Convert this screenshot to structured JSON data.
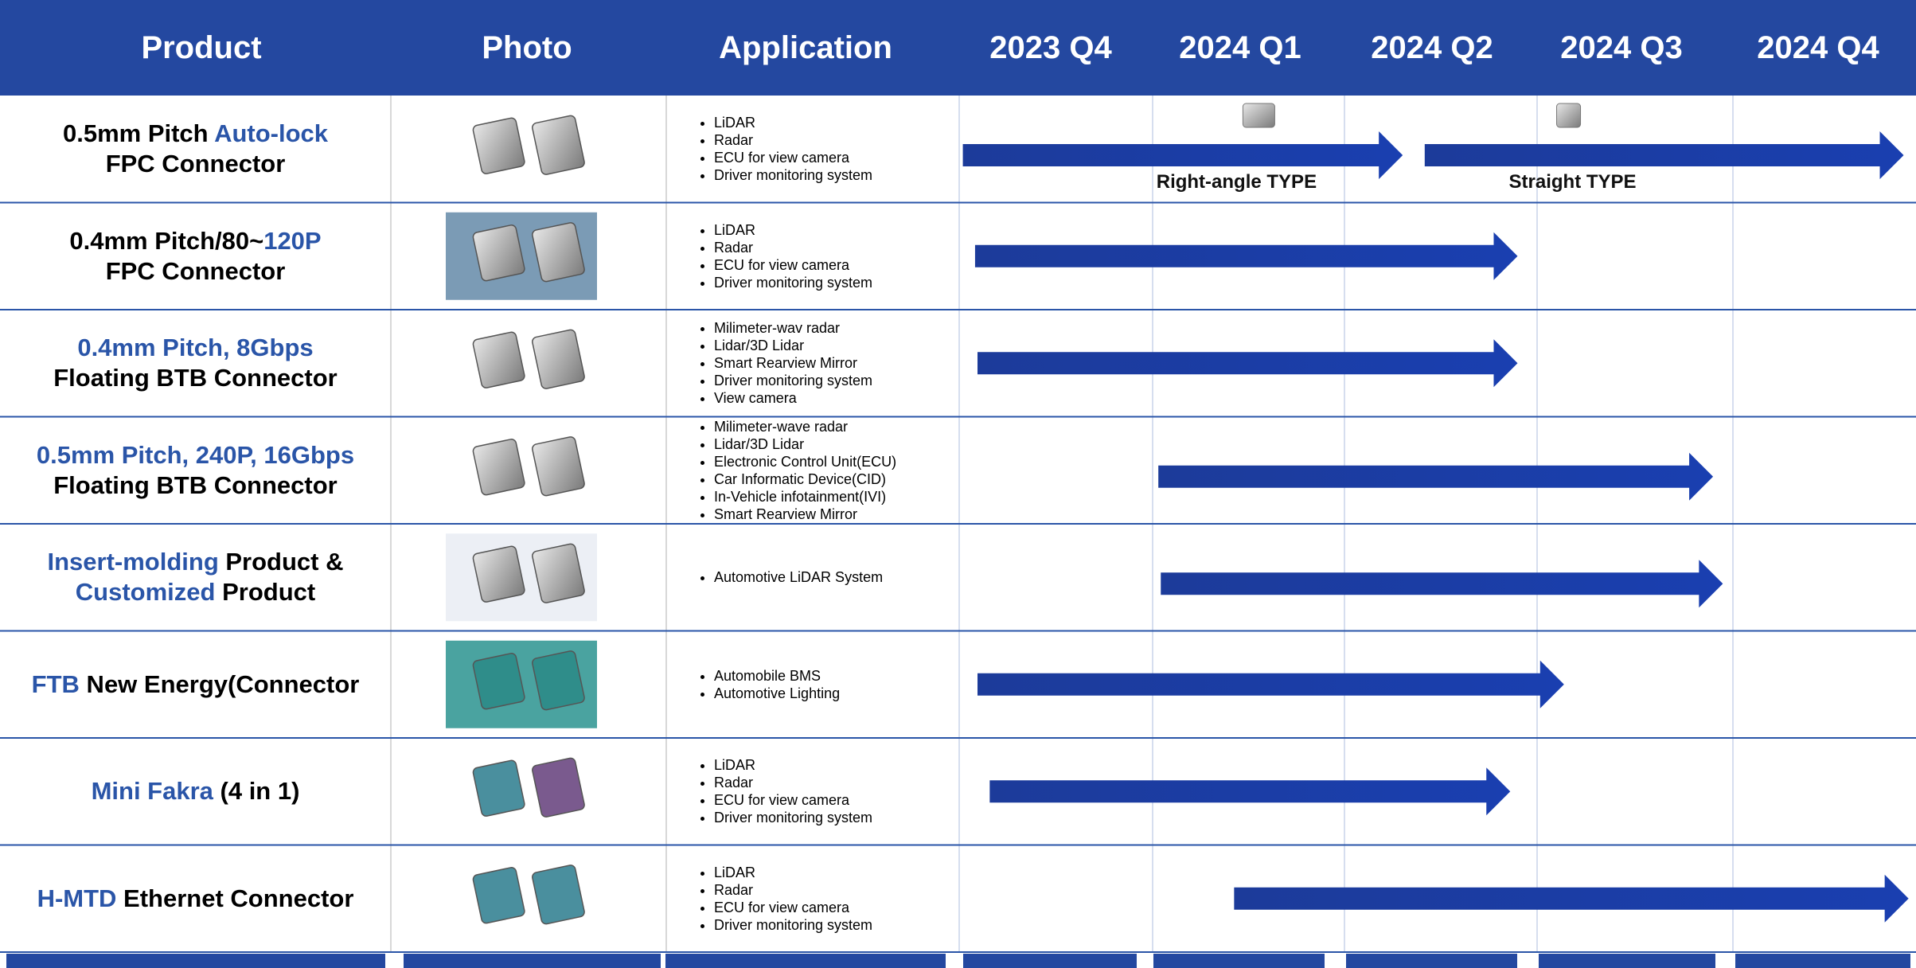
{
  "header": {
    "columns": [
      "Product",
      "Photo",
      "Application",
      "2023 Q4",
      "2024 Q1",
      "2024 Q2",
      "2024 Q3",
      "2024 Q4"
    ]
  },
  "rows": [
    {
      "product": [
        [
          {
            "text": "0.5mm Pitch "
          },
          {
            "text": "Auto-lock",
            "color": "#2a55a8"
          }
        ],
        [
          {
            "text": "FPC Connector"
          }
        ]
      ],
      "applications": [
        "LiDAR",
        "Radar",
        "ECU for view camera",
        "Driver monitoring system"
      ],
      "labels": [
        "Right-angle TYPE",
        "Straight TYPE"
      ]
    },
    {
      "product": [
        [
          {
            "text": "0.4mm Pitch/80~"
          },
          {
            "text": "120P",
            "color": "#2a55a8"
          }
        ],
        [
          {
            "text": "FPC Connector"
          }
        ]
      ],
      "applications": [
        "LiDAR",
        "Radar",
        "ECU for view camera",
        "Driver monitoring system"
      ]
    },
    {
      "product": [
        [
          {
            "text": "0.4mm Pitch, 8Gbps",
            "color": "#2a55a8"
          }
        ],
        [
          {
            "text": "Floating BTB Connector"
          }
        ]
      ],
      "applications": [
        "Milimeter-wav radar",
        "Lidar/3D Lidar",
        "Smart Rearview Mirror",
        "Driver monitoring system",
        "View camera"
      ]
    },
    {
      "product": [
        [
          {
            "text": "0.5mm Pitch, 240P, 16Gbps",
            "color": "#2a55a8"
          }
        ],
        [
          {
            "text": "Floating BTB Connector"
          }
        ]
      ],
      "applications": [
        "Milimeter-wave radar",
        "Lidar/3D Lidar",
        "Electronic Control Unit(ECU)",
        "Car Informatic Device(CID)",
        "In-Vehicle infotainment(IVI)",
        "Smart Rearview Mirror"
      ]
    },
    {
      "product": [
        [
          {
            "text": "Insert-molding",
            "color": "#2a55a8"
          },
          {
            "text": " Product &"
          }
        ],
        [
          {
            "text": "Customized",
            "color": "#2a55a8"
          },
          {
            "text": " Product"
          }
        ]
      ],
      "applications": [
        "Automotive LiDAR System"
      ]
    },
    {
      "product": [
        [
          {
            "text": "FTB",
            "color": "#2a55a8"
          },
          {
            "text": " New Energy(Connector"
          }
        ]
      ],
      "applications": [
        "Automobile BMS",
        "Automotive Lighting"
      ]
    },
    {
      "product": [
        [
          {
            "text": "Mini Fakra",
            "color": "#2a55a8"
          },
          {
            "text": " (4 in 1)"
          }
        ]
      ],
      "applications": [
        "LiDAR",
        "Radar",
        "ECU for view camera",
        "Driver monitoring system"
      ]
    },
    {
      "product": [
        [
          {
            "text": "H-MTD",
            "color": "#2a55a8"
          },
          {
            "text": " Ethernet Connector"
          }
        ]
      ],
      "applications": [
        "LiDAR",
        "Radar",
        "ECU for view camera",
        "Driver monitoring system"
      ]
    }
  ]
}
